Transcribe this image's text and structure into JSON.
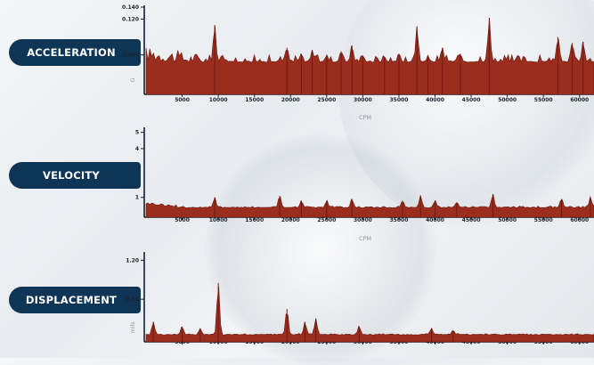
{
  "colors": {
    "spectrum": "#9b2d1f",
    "spectrum_dark": "#6e1a10",
    "pill": "#0f3556",
    "axis": "#14202c"
  },
  "chart_data": [
    {
      "type": "area",
      "label": "ACCELERATION",
      "ylabel": "G",
      "xlabel": "CPM",
      "xlim": [
        0,
        62000
      ],
      "ylim": [
        0,
        0.14
      ],
      "yticks": [
        "0.140",
        "0.120",
        "0.060"
      ],
      "ytick_values": [
        0.14,
        0.12,
        0.06
      ],
      "xticks": [
        "5000",
        "10000",
        "15000",
        "20000",
        "25000",
        "30000",
        "35000",
        "40000",
        "45000",
        "50000",
        "55000",
        "60000"
      ],
      "baseline": 0.048,
      "peaks": [
        [
          9500,
          0.11
        ],
        [
          19500,
          0.072
        ],
        [
          21500,
          0.062
        ],
        [
          23000,
          0.068
        ],
        [
          25000,
          0.06
        ],
        [
          27000,
          0.066
        ],
        [
          28500,
          0.076
        ],
        [
          30000,
          0.058
        ],
        [
          33000,
          0.056
        ],
        [
          35000,
          0.062
        ],
        [
          37500,
          0.108
        ],
        [
          39000,
          0.056
        ],
        [
          41000,
          0.072
        ],
        [
          43500,
          0.062
        ],
        [
          47500,
          0.122
        ],
        [
          57000,
          0.09
        ],
        [
          59000,
          0.08
        ],
        [
          60500,
          0.082
        ]
      ]
    },
    {
      "type": "area",
      "label": "VELOCITY",
      "ylabel": "",
      "xlabel": "CPM",
      "xlim": [
        0,
        62000
      ],
      "ylim": [
        0,
        5.2
      ],
      "yticks": [
        "5",
        "4",
        "1"
      ],
      "ytick_values": [
        5,
        4,
        1
      ],
      "xticks": [
        "5000",
        "10000",
        "15000",
        "20000",
        "25000",
        "30000",
        "35000",
        "40000",
        "45000",
        "50000",
        "55000",
        "60000"
      ],
      "baseline": 0.35,
      "peaks": [
        [
          9500,
          1.0
        ],
        [
          18500,
          1.1
        ],
        [
          21500,
          0.8
        ],
        [
          25000,
          0.8
        ],
        [
          28500,
          0.9
        ],
        [
          35500,
          0.8
        ],
        [
          38000,
          1.1
        ],
        [
          40000,
          0.8
        ],
        [
          43000,
          0.7
        ],
        [
          48000,
          1.2
        ],
        [
          57500,
          0.9
        ],
        [
          61500,
          1.0
        ]
      ]
    },
    {
      "type": "area",
      "label": "DISPLACEMENT",
      "ylabel": "mils",
      "xlabel": "",
      "xlim": [
        0,
        62000
      ],
      "ylim": [
        0,
        1.3
      ],
      "yticks": [
        "1.20",
        "0.60"
      ],
      "ytick_values": [
        1.2,
        0.6
      ],
      "xticks": [
        "5000",
        "10000",
        "15000",
        "20000",
        "25000",
        "30000",
        "35000",
        "40000",
        "45000",
        "50000",
        "55000",
        "60000"
      ],
      "baseline": 0.05,
      "peaks": [
        [
          1000,
          0.25
        ],
        [
          5000,
          0.18
        ],
        [
          7500,
          0.15
        ],
        [
          10000,
          0.85
        ],
        [
          19500,
          0.45
        ],
        [
          22000,
          0.25
        ],
        [
          23500,
          0.3
        ],
        [
          29500,
          0.18
        ],
        [
          39500,
          0.15
        ],
        [
          42500,
          0.12
        ]
      ]
    }
  ]
}
